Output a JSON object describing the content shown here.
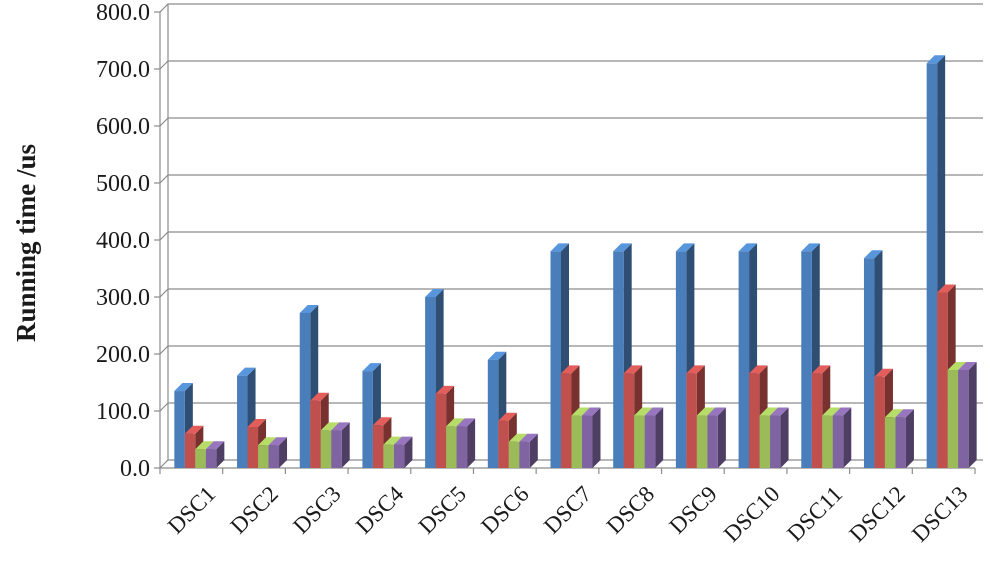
{
  "chart_data": {
    "type": "bar",
    "title": "",
    "xlabel": "",
    "ylabel": "Running time /us",
    "ylim": [
      0,
      800
    ],
    "ytick_labels": [
      "0.0",
      "100.0",
      "200.0",
      "300.0",
      "400.0",
      "500.0",
      "600.0",
      "700.0",
      "800.0"
    ],
    "categories": [
      "DSC1",
      "DSC2",
      "DSC3",
      "DSC4",
      "DSC5",
      "DSC6",
      "DSC7",
      "DSC8",
      "DSC9",
      "DSC10",
      "DSC11",
      "DSC12",
      "DSC13"
    ],
    "series": [
      {
        "color": "#4a7ebb",
        "values": [
          135,
          162,
          272,
          170,
          300,
          190,
          380,
          380,
          380,
          380,
          380,
          368,
          710
        ]
      },
      {
        "color": "#c0504d",
        "values": [
          60,
          72,
          118,
          75,
          130,
          83,
          166,
          166,
          166,
          166,
          166,
          160,
          308
        ]
      },
      {
        "color": "#9bbb59",
        "values": [
          33,
          40,
          66,
          41,
          73,
          46,
          92,
          92,
          92,
          92,
          92,
          89,
          172
        ]
      },
      {
        "color": "#8064a2",
        "values": [
          33,
          40,
          66,
          41,
          73,
          46,
          92,
          92,
          92,
          92,
          92,
          89,
          172
        ]
      }
    ],
    "grid": true,
    "legend": "none",
    "style": "3d-clustered-column"
  }
}
